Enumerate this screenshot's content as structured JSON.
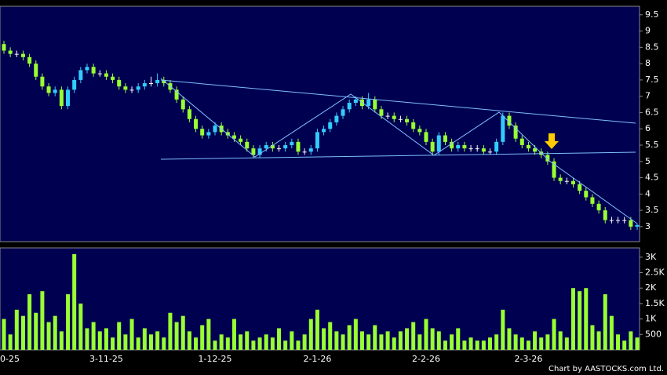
{
  "chart_data": {
    "type": "candlestick",
    "categories": [
      "0-25",
      null,
      null,
      null,
      null,
      null,
      null,
      null,
      null,
      null,
      null,
      null,
      null,
      null,
      null,
      null,
      "3-11-25",
      null,
      null,
      null,
      null,
      null,
      null,
      null,
      null,
      null,
      null,
      null,
      null,
      null,
      null,
      null,
      null,
      "1-12-25",
      null,
      null,
      null,
      null,
      null,
      null,
      null,
      null,
      null,
      null,
      null,
      null,
      null,
      null,
      null,
      "2-1-26",
      null,
      null,
      null,
      null,
      null,
      null,
      null,
      null,
      null,
      null,
      null,
      null,
      null,
      null,
      null,
      null,
      "2-2-26",
      null,
      null,
      null,
      null,
      null,
      null,
      null,
      null,
      null,
      null,
      null,
      null,
      null,
      null,
      null,
      "2-3-26",
      null,
      null,
      null,
      null,
      null,
      null,
      null,
      null,
      null,
      null,
      null,
      null,
      null,
      null,
      null,
      null,
      null
    ],
    "open": [
      8.6,
      8.4,
      8.3,
      8.3,
      8.2,
      8.0,
      7.6,
      7.3,
      7.1,
      7.2,
      6.7,
      7.2,
      7.5,
      7.8,
      7.9,
      7.7,
      7.7,
      7.6,
      7.5,
      7.3,
      7.2,
      7.2,
      7.3,
      7.4,
      7.4,
      7.5,
      7.4,
      7.2,
      6.9,
      6.6,
      6.3,
      6.0,
      5.8,
      5.9,
      6.1,
      5.9,
      5.8,
      5.7,
      5.6,
      5.4,
      5.2,
      5.4,
      5.5,
      5.4,
      5.4,
      5.5,
      5.6,
      5.3,
      5.3,
      5.4,
      5.9,
      6.0,
      6.2,
      6.4,
      6.6,
      6.8,
      6.9,
      6.7,
      6.9,
      6.6,
      6.4,
      6.4,
      6.3,
      6.3,
      6.2,
      6.0,
      5.9,
      5.6,
      5.3,
      5.8,
      5.6,
      5.4,
      5.5,
      5.4,
      5.4,
      5.4,
      5.3,
      5.3,
      5.6,
      6.4,
      6.1,
      5.7,
      5.5,
      5.4,
      5.3,
      5.2,
      5.0,
      4.5,
      4.4,
      4.4,
      4.3,
      4.1,
      3.9,
      3.7,
      3.5,
      3.2,
      3.2,
      3.2,
      3.2,
      3.0
    ],
    "high": [
      8.7,
      8.5,
      8.4,
      8.4,
      8.3,
      8.1,
      7.7,
      7.4,
      7.3,
      7.3,
      7.3,
      7.6,
      7.9,
      8.0,
      8.0,
      7.8,
      7.8,
      7.7,
      7.6,
      7.4,
      7.3,
      7.4,
      7.5,
      7.6,
      7.7,
      7.6,
      7.5,
      7.3,
      7.0,
      6.7,
      6.4,
      6.1,
      6.0,
      6.2,
      6.2,
      6.0,
      5.9,
      5.8,
      5.7,
      5.5,
      5.5,
      5.6,
      5.6,
      5.5,
      5.6,
      5.7,
      5.7,
      5.4,
      5.5,
      6.0,
      6.1,
      6.3,
      6.5,
      6.7,
      6.9,
      7.0,
      7.0,
      7.1,
      7.0,
      6.7,
      6.5,
      6.5,
      6.4,
      6.4,
      6.3,
      6.1,
      6.0,
      5.7,
      5.9,
      5.9,
      5.7,
      5.6,
      5.6,
      5.5,
      5.5,
      5.5,
      5.4,
      5.7,
      6.5,
      6.5,
      6.2,
      5.8,
      5.6,
      5.5,
      5.4,
      5.3,
      5.1,
      4.6,
      4.5,
      4.5,
      4.4,
      4.2,
      4.0,
      3.8,
      3.6,
      3.3,
      3.3,
      3.3,
      3.3,
      3.1
    ],
    "low": [
      8.3,
      8.2,
      8.2,
      8.1,
      7.9,
      7.5,
      7.2,
      7.0,
      7.0,
      6.6,
      6.6,
      7.1,
      7.4,
      7.7,
      7.6,
      7.6,
      7.5,
      7.4,
      7.2,
      7.1,
      7.1,
      7.1,
      7.2,
      7.3,
      7.3,
      7.3,
      7.1,
      6.8,
      6.5,
      6.2,
      5.9,
      5.7,
      5.7,
      5.8,
      5.8,
      5.7,
      5.6,
      5.5,
      5.3,
      5.1,
      5.1,
      5.3,
      5.3,
      5.3,
      5.3,
      5.4,
      5.2,
      5.2,
      5.2,
      5.3,
      5.8,
      5.9,
      6.1,
      6.3,
      6.5,
      6.7,
      6.6,
      6.6,
      6.5,
      6.3,
      6.3,
      6.2,
      6.2,
      6.1,
      5.9,
      5.8,
      5.5,
      5.2,
      5.2,
      5.5,
      5.3,
      5.3,
      5.3,
      5.3,
      5.3,
      5.2,
      5.2,
      5.2,
      5.5,
      6.0,
      5.6,
      5.4,
      5.3,
      5.2,
      5.1,
      4.9,
      4.4,
      4.3,
      4.3,
      4.2,
      4.0,
      3.8,
      3.6,
      3.4,
      3.1,
      3.1,
      3.1,
      3.1,
      2.9,
      2.9
    ],
    "close": [
      8.4,
      8.3,
      8.3,
      8.2,
      8.0,
      7.6,
      7.3,
      7.1,
      7.2,
      6.7,
      7.2,
      7.5,
      7.8,
      7.9,
      7.7,
      7.7,
      7.6,
      7.5,
      7.3,
      7.2,
      7.2,
      7.3,
      7.4,
      7.4,
      7.5,
      7.4,
      7.2,
      6.9,
      6.6,
      6.3,
      6.0,
      5.8,
      5.9,
      6.1,
      5.9,
      5.8,
      5.7,
      5.6,
      5.4,
      5.2,
      5.4,
      5.5,
      5.4,
      5.4,
      5.5,
      5.6,
      5.3,
      5.3,
      5.4,
      5.9,
      6.0,
      6.2,
      6.4,
      6.6,
      6.8,
      6.9,
      6.7,
      6.9,
      6.6,
      6.4,
      6.4,
      6.3,
      6.3,
      6.2,
      6.0,
      5.9,
      5.6,
      5.3,
      5.8,
      5.6,
      5.4,
      5.5,
      5.4,
      5.4,
      5.4,
      5.3,
      5.3,
      5.6,
      6.4,
      6.1,
      5.7,
      5.5,
      5.4,
      5.3,
      5.2,
      5.0,
      4.5,
      4.4,
      4.4,
      4.3,
      4.1,
      3.9,
      3.7,
      3.5,
      3.2,
      3.2,
      3.2,
      3.2,
      3.0,
      3.05
    ],
    "up_color": "#33ccff",
    "down_color": "#99ff33",
    "flat_color": "#ffffff",
    "ylim": [
      2.54,
      9.76
    ],
    "yticks": [
      3,
      3.5,
      4,
      4.5,
      5,
      5.5,
      6,
      6.5,
      7,
      7.5,
      8,
      8.5,
      9,
      9.5
    ],
    "volume": {
      "values": [
        1000,
        500,
        1300,
        1100,
        1800,
        1200,
        1900,
        900,
        1100,
        600,
        1800,
        3100,
        1500,
        700,
        900,
        600,
        700,
        400,
        900,
        500,
        1000,
        400,
        700,
        500,
        600,
        400,
        1200,
        900,
        1100,
        600,
        400,
        800,
        1000,
        300,
        500,
        400,
        1000,
        500,
        600,
        300,
        400,
        500,
        400,
        700,
        300,
        600,
        300,
        500,
        1000,
        1300,
        700,
        900,
        600,
        500,
        800,
        1000,
        600,
        500,
        800,
        500,
        600,
        400,
        600,
        700,
        900,
        500,
        1000,
        700,
        600,
        300,
        500,
        700,
        300,
        400,
        300,
        300,
        400,
        500,
        1300,
        700,
        500,
        400,
        300,
        600,
        400,
        500,
        1000,
        600,
        400,
        2000,
        1900,
        2000,
        800,
        600,
        1800,
        1100,
        500,
        300,
        600,
        400
      ],
      "color": "#99ff33",
      "ylim": [
        0,
        3300
      ],
      "yticks": [
        500,
        {
          "value": 1000,
          "label": "1K"
        },
        {
          "value": 1500,
          "label": "1.5K"
        },
        {
          "value": 2000,
          "label": "2K"
        },
        {
          "value": 2500,
          "label": "2.5K"
        },
        {
          "value": 3000,
          "label": "3K"
        }
      ]
    },
    "footer": "Chart by AASTOCKS.com Ltd."
  }
}
